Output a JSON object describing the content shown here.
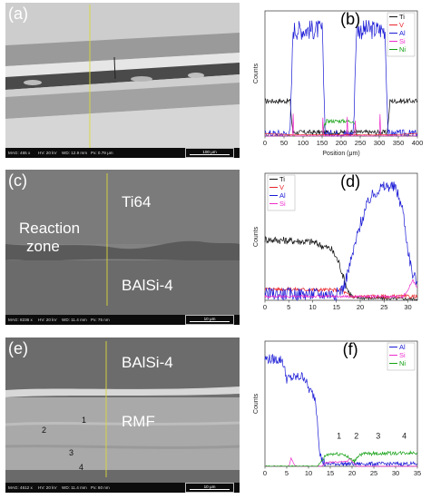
{
  "panels": {
    "a": {
      "label": "(a)",
      "info": {
        "mag": "MAG: 465 x",
        "hv": "HV: 20 kV",
        "wd": "WD: 12.9 mm",
        "px": "Px: 0.79 μm"
      },
      "scale": "100 μm"
    },
    "c": {
      "label": "(c)",
      "info": {
        "mag": "MAG: 8236 x",
        "hv": "HV: 20 kV",
        "wd": "WD: 11.4 mm",
        "px": "Px: 75 nm"
      },
      "scale": "10 μm",
      "text_ti64": "Ti64",
      "text_reaction_1": "Reaction",
      "text_reaction_2": "zone",
      "text_balsi": "BAlSi-4"
    },
    "e": {
      "label": "(e)",
      "info": {
        "mag": "MAG: 4612 x",
        "hv": "HV: 20 kV",
        "wd": "WD: 11.4 mm",
        "px": "Px: 60 nm"
      },
      "scale": "10 μm",
      "text_balsi": "BAlSi-4",
      "text_rmf": "RMF",
      "points": [
        "1",
        "2",
        "3",
        "4"
      ]
    }
  },
  "colors": {
    "black": "#111111",
    "red": "#e8242a",
    "blue": "#1a1ad6",
    "green": "#12a012",
    "magenta": "#ee2ccc",
    "scan_line": "#dada3a"
  },
  "chart_data": [
    {
      "type": "line",
      "panel_label": "(b)",
      "xlabel": "Position (μm)",
      "ylabel": "Counts",
      "xlim": [
        0,
        400
      ],
      "xticks": [
        0,
        50,
        100,
        150,
        200,
        250,
        300,
        350,
        400
      ],
      "legend": [
        "Ti",
        "V",
        "Al",
        "Si",
        "Ni"
      ],
      "legend_placement": "top-right",
      "series": [
        {
          "name": "Ti",
          "color": "black",
          "x": [
            0,
            62,
            66,
            70,
            74,
            320,
            324,
            328,
            332,
            400
          ],
          "y": [
            0.28,
            0.28,
            0.28,
            0.12,
            0.03,
            0.03,
            0.12,
            0.28,
            0.28,
            0.28
          ]
        },
        {
          "name": "Al",
          "color": "blue",
          "x": [
            0,
            66,
            70,
            74,
            150,
            154,
            158,
            232,
            236,
            240,
            315,
            319,
            323,
            400
          ],
          "y": [
            0.02,
            0.02,
            0.45,
            0.85,
            0.85,
            0.45,
            0.02,
            0.02,
            0.45,
            0.85,
            0.85,
            0.45,
            0.02,
            0.02
          ]
        },
        {
          "name": "Ni",
          "color": "green",
          "x": [
            0,
            150,
            156,
            162,
            232,
            236,
            242,
            400
          ],
          "y": [
            0.0,
            0.0,
            0.08,
            0.12,
            0.12,
            0.08,
            0.0,
            0.0
          ]
        },
        {
          "name": "Si",
          "color": "magenta",
          "x": [
            0,
            72,
            74,
            76,
            80,
            150,
            152,
            154,
            158,
            214,
            216,
            218,
            235,
            237,
            239,
            300,
            302,
            304,
            400
          ],
          "y": [
            0.0,
            0.0,
            0.18,
            0.0,
            0.0,
            0.0,
            0.14,
            0.0,
            0.0,
            0.0,
            0.15,
            0.0,
            0.0,
            0.13,
            0.0,
            0.0,
            0.17,
            0.0,
            0.0
          ]
        },
        {
          "name": "V",
          "color": "red",
          "x": [
            0,
            70,
            330,
            400
          ],
          "y": [
            0.02,
            0.01,
            0.01,
            0.02
          ]
        }
      ]
    },
    {
      "type": "line",
      "panel_label": "(d)",
      "xlabel": "",
      "ylabel": "Counts",
      "xlim": [
        0,
        32
      ],
      "xticks": [
        0,
        5,
        10,
        15,
        20,
        25,
        30
      ],
      "legend": [
        "Ti",
        "V",
        "Al",
        "Si"
      ],
      "legend_placement": "top-left",
      "series": [
        {
          "name": "Ti",
          "color": "black",
          "x": [
            0,
            5,
            10,
            14,
            15.5,
            16.5,
            17.5,
            18.5,
            32
          ],
          "y": [
            0.48,
            0.47,
            0.46,
            0.4,
            0.3,
            0.18,
            0.07,
            0.02,
            0.01
          ]
        },
        {
          "name": "V",
          "color": "red",
          "x": [
            0,
            16,
            18,
            32
          ],
          "y": [
            0.09,
            0.08,
            0.03,
            0.03
          ]
        },
        {
          "name": "Al",
          "color": "blue",
          "x": [
            0,
            15,
            16.5,
            18,
            20,
            22,
            24,
            26,
            27.5,
            29,
            30,
            31,
            32
          ],
          "y": [
            0.05,
            0.05,
            0.1,
            0.3,
            0.6,
            0.8,
            0.88,
            0.9,
            0.88,
            0.7,
            0.4,
            0.2,
            0.15
          ]
        },
        {
          "name": "Si",
          "color": "magenta",
          "x": [
            0,
            18,
            29,
            30,
            31,
            31.5,
            32
          ],
          "y": [
            0.03,
            0.03,
            0.03,
            0.08,
            0.16,
            0.13,
            0.1
          ]
        }
      ]
    },
    {
      "type": "line",
      "panel_label": "(f)",
      "xlabel": "",
      "ylabel": "Counts",
      "xlim": [
        0,
        35
      ],
      "xticks": [
        0,
        5,
        10,
        15,
        20,
        25,
        30,
        35
      ],
      "legend": [
        "Al",
        "Si",
        "Ni"
      ],
      "legend_placement": "top-right",
      "annotations": [
        "1",
        "2",
        "3",
        "4"
      ],
      "annotation_x": [
        17,
        21,
        26,
        32
      ],
      "series": [
        {
          "name": "Al",
          "color": "blue",
          "x": [
            0,
            4,
            5,
            9,
            10,
            11.5,
            12,
            12.5,
            13,
            14,
            35
          ],
          "y": [
            0.86,
            0.85,
            0.7,
            0.72,
            0.62,
            0.55,
            0.4,
            0.15,
            0.05,
            0.02,
            0.02
          ]
        },
        {
          "name": "Si",
          "color": "magenta",
          "x": [
            0,
            5.5,
            6,
            6.5,
            7,
            12,
            13,
            14,
            19,
            19.5,
            20,
            20.5,
            21,
            35
          ],
          "y": [
            0.0,
            0.0,
            0.07,
            0.03,
            0.0,
            0.0,
            0.0,
            0.03,
            0.04,
            0.06,
            0.04,
            0.02,
            0.0,
            0.0
          ]
        },
        {
          "name": "Ni",
          "color": "green",
          "x": [
            0,
            12,
            13,
            14,
            15,
            18,
            19.5,
            20.5,
            21.5,
            23,
            35
          ],
          "y": [
            0.0,
            0.0,
            0.04,
            0.09,
            0.1,
            0.1,
            0.06,
            0.04,
            0.09,
            0.1,
            0.11
          ]
        }
      ]
    }
  ]
}
